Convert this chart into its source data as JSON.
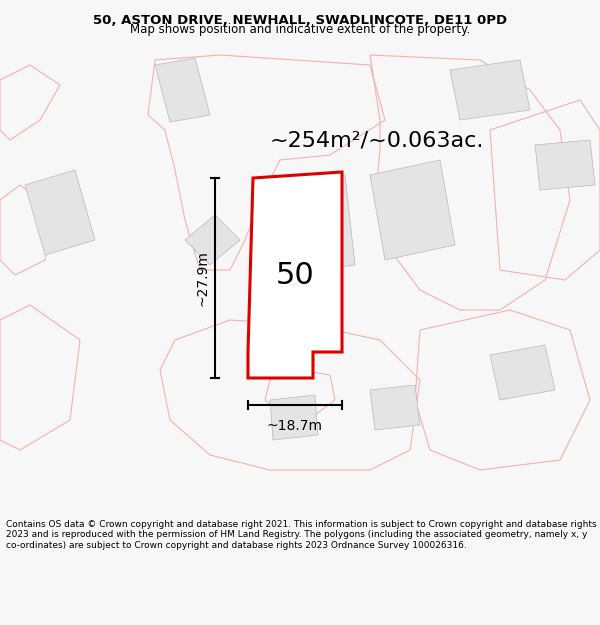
{
  "title_line1": "50, ASTON DRIVE, NEWHALL, SWADLINCOTE, DE11 0PD",
  "title_line2": "Map shows position and indicative extent of the property.",
  "footer": "Contains OS data © Crown copyright and database right 2021. This information is subject to Crown copyright and database rights 2023 and is reproduced with the permission of HM Land Registry. The polygons (including the associated geometry, namely x, y co-ordinates) are subject to Crown copyright and database rights 2023 Ordnance Survey 100026316.",
  "area_label": "~254m²/~0.063ac.",
  "width_label": "~18.7m",
  "height_label": "~27.9m",
  "plot_number": "50",
  "bg_color": "#f7f7f7",
  "map_bg": "#ffffff",
  "plot_color_fill": "#ffffff",
  "plot_color_edge": "#dd0000",
  "neighbor_fill": "#e4e4e4",
  "neighbor_edge": "#b8b8b8",
  "other_edge": "#f5b0b0",
  "other_fill": "#ffffff",
  "title_fontsize": 9.5,
  "subtitle_fontsize": 8.5,
  "footer_fontsize": 6.5,
  "area_fontsize": 16,
  "dim_fontsize": 10,
  "plot_num_fontsize": 22
}
